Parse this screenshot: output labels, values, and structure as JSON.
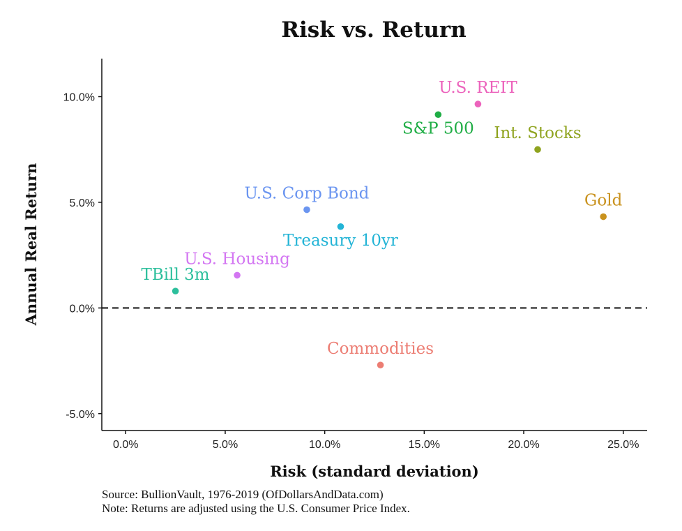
{
  "chart_data": {
    "type": "scatter",
    "title": "Risk vs. Return",
    "xlabel": "Risk (standard deviation)",
    "ylabel": "Annual Real Return",
    "xlim": [
      -0.012,
      0.262
    ],
    "ylim": [
      -0.058,
      0.118
    ],
    "x_ticks": [
      {
        "value": 0.0,
        "label": "0.0%"
      },
      {
        "value": 0.05,
        "label": "5.0%"
      },
      {
        "value": 0.1,
        "label": "10.0%"
      },
      {
        "value": 0.15,
        "label": "15.0%"
      },
      {
        "value": 0.2,
        "label": "20.0%"
      },
      {
        "value": 0.25,
        "label": "25.0%"
      }
    ],
    "y_ticks": [
      {
        "value": -0.05,
        "label": "-5.0%"
      },
      {
        "value": 0.0,
        "label": "0.0%"
      },
      {
        "value": 0.05,
        "label": "5.0%"
      },
      {
        "value": 0.1,
        "label": "10.0%"
      }
    ],
    "reference_line": {
      "y": 0.0,
      "style": "dashed"
    },
    "grid": false,
    "legend": "none",
    "points": [
      {
        "label": "TBill 3m",
        "x": 0.025,
        "y": 0.008,
        "color": "#2dbf9c",
        "label_pos": "above"
      },
      {
        "label": "U.S. Housing",
        "x": 0.056,
        "y": 0.0155,
        "color": "#d376f2",
        "label_pos": "above"
      },
      {
        "label": "U.S. Corp Bond",
        "x": 0.091,
        "y": 0.0465,
        "color": "#6b95f0",
        "label_pos": "above"
      },
      {
        "label": "Treasury 10yr",
        "x": 0.108,
        "y": 0.0385,
        "color": "#23b4d6",
        "label_pos": "below"
      },
      {
        "label": "Commodities",
        "x": 0.128,
        "y": -0.027,
        "color": "#ec7d73",
        "label_pos": "above"
      },
      {
        "label": "S&P 500",
        "x": 0.157,
        "y": 0.0915,
        "color": "#1fad45",
        "label_pos": "below"
      },
      {
        "label": "U.S. REIT",
        "x": 0.177,
        "y": 0.0965,
        "color": "#ec63bc",
        "label_pos": "above"
      },
      {
        "label": "Int. Stocks",
        "x": 0.207,
        "y": 0.075,
        "color": "#8fa31f",
        "label_pos": "above"
      },
      {
        "label": "Gold",
        "x": 0.24,
        "y": 0.0432,
        "color": "#c9921e",
        "label_pos": "above"
      }
    ]
  },
  "footer": {
    "source": "Source: BullionVault, 1976-2019 (OfDollarsAndData.com)",
    "note": "Note: Returns are adjusted using the U.S. Consumer Price Index."
  }
}
